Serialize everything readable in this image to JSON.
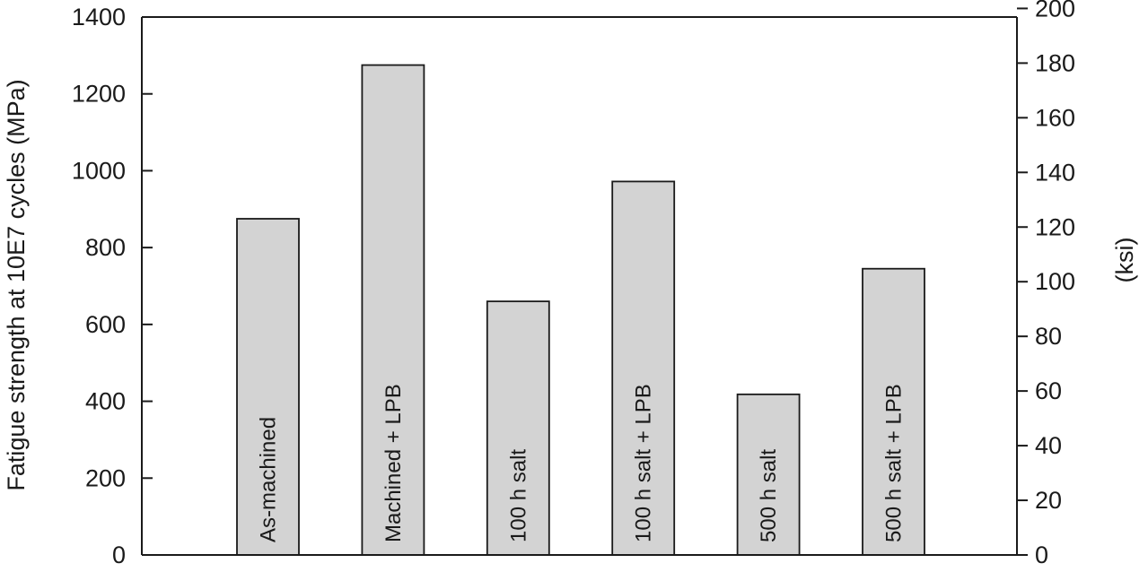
{
  "chart_data": {
    "type": "bar",
    "title": "",
    "xlabel": "",
    "ylabel": "Fatigue strength at 10E7 cycles (MPa)",
    "ylabel_right": "(ksi)",
    "categories": [
      "As-machined",
      "Machined + LPB",
      "100 h salt",
      "100 h salt + LPB",
      "500 h salt",
      "500 h salt + LPB"
    ],
    "values": [
      875,
      1275,
      660,
      972,
      418,
      745
    ],
    "ylim": [
      0,
      1400
    ],
    "yticks": [
      0,
      200,
      400,
      600,
      800,
      1000,
      1200,
      1400
    ],
    "ylim_right": [
      0,
      200
    ],
    "yticks_right": [
      0,
      20,
      40,
      60,
      80,
      100,
      120,
      140,
      160,
      180,
      200
    ],
    "grid": false,
    "colors": {
      "bar_fill": "#d3d3d3",
      "bar_edge": "#1a1a1a"
    }
  }
}
